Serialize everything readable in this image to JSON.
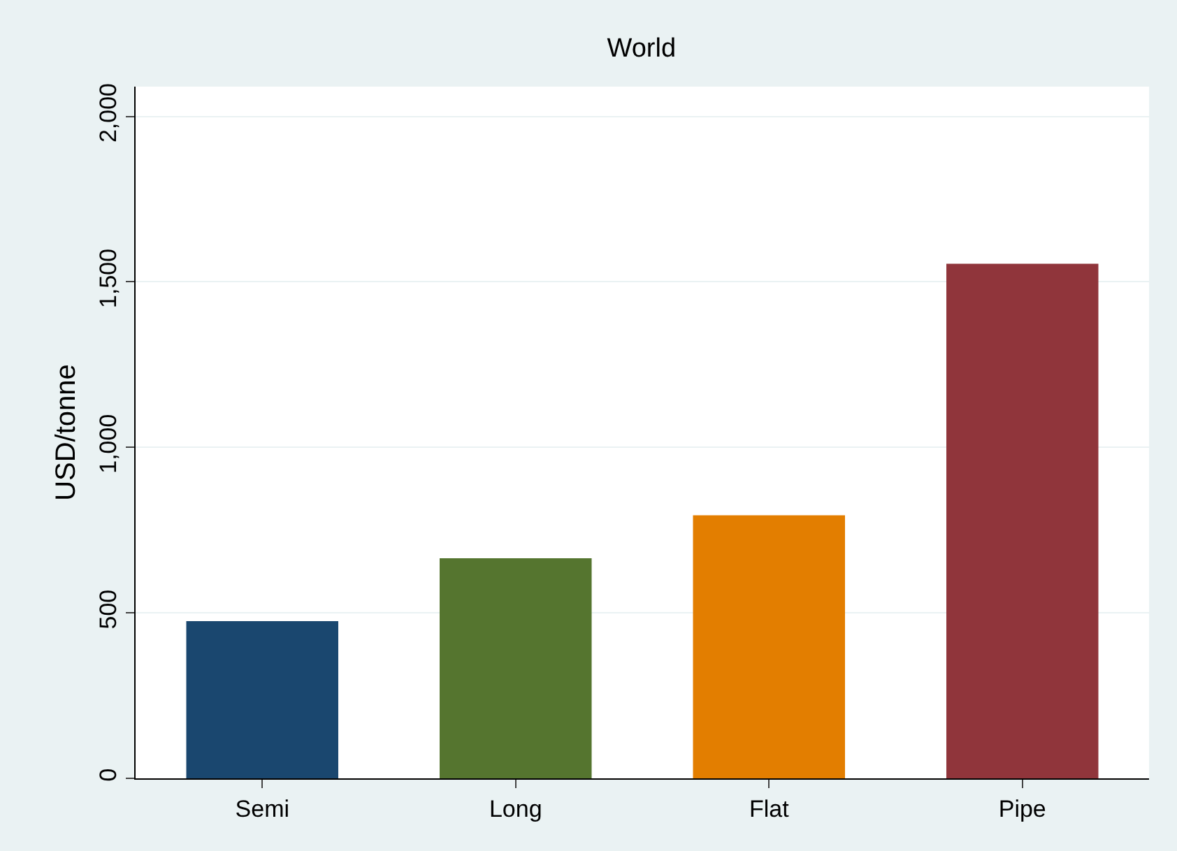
{
  "chart_data": {
    "type": "bar",
    "title": "World",
    "ylabel": "USD/tonne",
    "categories": [
      "Semi",
      "Long",
      "Flat",
      "Pipe"
    ],
    "values": [
      475,
      665,
      795,
      1555
    ],
    "colors": [
      "#1a476f",
      "#55752f",
      "#e37e00",
      "#90353b"
    ],
    "ylim": [
      0,
      2090
    ],
    "yticks": [
      0,
      {
        "value": 500,
        "label": "500"
      },
      {
        "value": 1000,
        "label": "1,000"
      },
      {
        "value": 1500,
        "label": "1,500"
      },
      {
        "value": 2000,
        "label": "2,000"
      }
    ],
    "grid": "y"
  }
}
